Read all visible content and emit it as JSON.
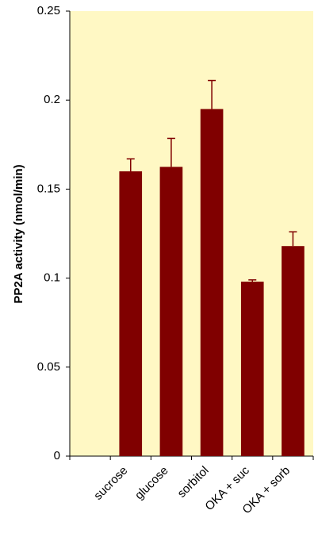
{
  "chart_data": {
    "type": "bar",
    "y_label": "PP2A activity (nmol/min)",
    "categories": [
      null,
      "sucrose",
      "glucose",
      "sorbitol",
      "OKA + suc",
      "OKA + sorb"
    ],
    "series": [
      {
        "color": "#800000",
        "values": [
          null,
          0.16,
          0.1625,
          0.195,
          0.098,
          0.118
        ],
        "errors": [
          null,
          0.007,
          0.016,
          0.016,
          0.001,
          0.008
        ]
      }
    ],
    "ylim": [
      0,
      0.25
    ],
    "yticks": [
      0,
      0.05,
      0.1,
      0.15,
      0.2,
      0.25
    ],
    "plot_background": "#fff8c4",
    "grid": false
  }
}
